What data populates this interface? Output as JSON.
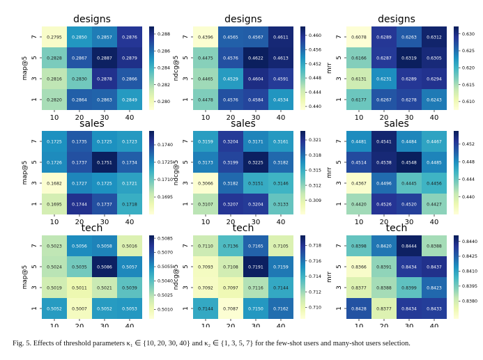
{
  "caption": "Fig. 5.  Effects of threshold parameters κ₁ ∈ {10, 20, 30, 40} and κ₂ ∈ {1, 3, 5, 7} for the few-shot users and many-shot users selection.",
  "colormap": [
    "#ffffd9",
    "#edf8b1",
    "#c7e9b4",
    "#7fcdbb",
    "#41b6c4",
    "#1d91c0",
    "#225ea8",
    "#253494",
    "#081d58"
  ],
  "chart_data": [
    {
      "type": "heatmap",
      "title": "designs",
      "ylabel": "map@5",
      "xcats": [
        "10",
        "20",
        "30",
        "40"
      ],
      "ycats": [
        "7",
        "5",
        "3",
        "1"
      ],
      "values": [
        [
          "0.2795",
          "0.2850",
          "0.2857",
          "0.2876"
        ],
        [
          "0.2828",
          "0.2867",
          "0.2887",
          "0.2879"
        ],
        [
          "0.2816",
          "0.2830",
          "0.2878",
          "0.2866"
        ],
        [
          "0.2820",
          "0.2864",
          "0.2863",
          "0.2849"
        ]
      ],
      "vmin": 0.279,
      "vmax": 0.2889,
      "cticks": [
        "0.288",
        "0.286",
        "0.284",
        "0.282",
        "0.280"
      ],
      "ctickvals": [
        0.288,
        0.286,
        0.284,
        0.282,
        0.28
      ]
    },
    {
      "type": "heatmap",
      "title": "designs",
      "ylabel": "ndcg@5",
      "xcats": [
        "10",
        "20",
        "30",
        "40"
      ],
      "ycats": [
        "7",
        "5",
        "3",
        "1"
      ],
      "values": [
        [
          "0.4396",
          "0.4565",
          "0.4567",
          "0.4611"
        ],
        [
          "0.4475",
          "0.4576",
          "0.4622",
          "0.4613"
        ],
        [
          "0.4465",
          "0.4529",
          "0.4604",
          "0.4591"
        ],
        [
          "0.4478",
          "0.4576",
          "0.4584",
          "0.4534"
        ]
      ],
      "vmin": 0.439,
      "vmax": 0.4625,
      "cticks": [
        "0.460",
        "0.456",
        "0.452",
        "0.448",
        "0.444",
        "0.440"
      ],
      "ctickvals": [
        0.46,
        0.456,
        0.452,
        0.448,
        0.444,
        0.44
      ]
    },
    {
      "type": "heatmap",
      "title": "designs",
      "ylabel": "mrr",
      "xcats": [
        "10",
        "20",
        "30",
        "40"
      ],
      "ycats": [
        "7",
        "5",
        "3",
        "1"
      ],
      "values": [
        [
          "0.6078",
          "0.6289",
          "0.6263",
          "0.6312"
        ],
        [
          "0.6166",
          "0.6287",
          "0.6319",
          "0.6305"
        ],
        [
          "0.6131",
          "0.6231",
          "0.6289",
          "0.6294"
        ],
        [
          "0.6177",
          "0.6267",
          "0.6278",
          "0.6243"
        ]
      ],
      "vmin": 0.6075,
      "vmax": 0.6322,
      "cticks": [
        "0.630",
        "0.625",
        "0.620",
        "0.615",
        "0.610"
      ],
      "ctickvals": [
        0.63,
        0.625,
        0.62,
        0.615,
        0.61
      ]
    },
    {
      "type": "heatmap",
      "title": "sales",
      "ylabel": "map@5",
      "xcats": [
        "10",
        "20",
        "30",
        "40"
      ],
      "ycats": [
        "7",
        "5",
        "3",
        "1"
      ],
      "values": [
        [
          "0.1725",
          "0.1735",
          "0.1725",
          "0.1723"
        ],
        [
          "0.1726",
          "0.1737",
          "0.1751",
          "0.1734"
        ],
        [
          "0.1682",
          "0.1727",
          "0.1725",
          "0.1721"
        ],
        [
          "0.1695",
          "0.1744",
          "0.1737",
          "0.1718"
        ]
      ],
      "vmin": 0.168,
      "vmax": 0.1752,
      "cticks": [
        "0.1740",
        "0.1725",
        "0.1710",
        "0.1695"
      ],
      "ctickvals": [
        0.174,
        0.1725,
        0.171,
        0.1695
      ]
    },
    {
      "type": "heatmap",
      "title": "sales",
      "ylabel": "ndcg@5",
      "xcats": [
        "10",
        "20",
        "30",
        "40"
      ],
      "ycats": [
        "7",
        "5",
        "3",
        "1"
      ],
      "values": [
        [
          "0.3159",
          "0.3204",
          "0.3171",
          "0.3161"
        ],
        [
          "0.3173",
          "0.3199",
          "0.3225",
          "0.3182"
        ],
        [
          "0.3066",
          "0.3182",
          "0.3151",
          "0.3146"
        ],
        [
          "0.3107",
          "0.3207",
          "0.3204",
          "0.3133"
        ]
      ],
      "vmin": 0.3062,
      "vmax": 0.3228,
      "cticks": [
        "0.321",
        "0.318",
        "0.315",
        "0.312",
        "0.309"
      ],
      "ctickvals": [
        0.321,
        0.318,
        0.315,
        0.312,
        0.309
      ]
    },
    {
      "type": "heatmap",
      "title": "sales",
      "ylabel": "mrr",
      "xcats": [
        "10",
        "20",
        "30",
        "40"
      ],
      "ycats": [
        "7",
        "5",
        "3",
        "1"
      ],
      "values": [
        [
          "0.4481",
          "0.4541",
          "0.4484",
          "0.4467"
        ],
        [
          "0.4514",
          "0.4538",
          "0.4548",
          "0.4485"
        ],
        [
          "0.4367",
          "0.4496",
          "0.4445",
          "0.4456"
        ],
        [
          "0.4420",
          "0.4526",
          "0.4520",
          "0.4427"
        ]
      ],
      "vmin": 0.436,
      "vmax": 0.455,
      "cticks": [
        "0.452",
        "0.448",
        "0.444",
        "0.440"
      ],
      "ctickvals": [
        0.452,
        0.448,
        0.444,
        0.44
      ]
    },
    {
      "type": "heatmap",
      "title": "tech",
      "ylabel": "map@5",
      "xcats": [
        "10",
        "20",
        "30",
        "40"
      ],
      "ycats": [
        "7",
        "5",
        "3",
        "1"
      ],
      "values": [
        [
          "0.5023",
          "0.5056",
          "0.5058",
          "0.5016"
        ],
        [
          "0.5024",
          "0.5035",
          "0.5086",
          "0.5057"
        ],
        [
          "0.5019",
          "0.5011",
          "0.5021",
          "0.5039"
        ],
        [
          "0.5052",
          "0.5007",
          "0.5052",
          "0.5053"
        ]
      ],
      "vmin": 0.5,
      "vmax": 0.5088,
      "cticks": [
        "0.5085",
        "0.5070",
        "0.5055",
        "0.5040",
        "0.5025",
        "0.5010"
      ],
      "ctickvals": [
        0.5085,
        0.507,
        0.5055,
        0.504,
        0.5025,
        0.501
      ]
    },
    {
      "type": "heatmap",
      "title": "tech",
      "ylabel": "ndcg@5",
      "xcats": [
        "10",
        "20",
        "30",
        "40"
      ],
      "ycats": [
        "7",
        "5",
        "3",
        "1"
      ],
      "values": [
        [
          "0.7110",
          "0.7136",
          "0.7165",
          "0.7105"
        ],
        [
          "0.7093",
          "0.7108",
          "0.7191",
          "0.7159"
        ],
        [
          "0.7092",
          "0.7097",
          "0.7116",
          "0.7144"
        ],
        [
          "0.7144",
          "0.7087",
          "0.7150",
          "0.7162"
        ]
      ],
      "vmin": 0.7085,
      "vmax": 0.7193,
      "cticks": [
        "0.718",
        "0.716",
        "0.714",
        "0.712",
        "0.710"
      ],
      "ctickvals": [
        0.718,
        0.716,
        0.714,
        0.712,
        0.71
      ]
    },
    {
      "type": "heatmap",
      "title": "tech",
      "ylabel": "mrr",
      "xcats": [
        "10",
        "20",
        "30",
        "40"
      ],
      "ycats": [
        "7",
        "5",
        "3",
        "1"
      ],
      "values": [
        [
          "0.8398",
          "0.8420",
          "0.8444",
          "0.8388"
        ],
        [
          "0.8366",
          "0.8391",
          "0.8434",
          "0.8437"
        ],
        [
          "0.8377",
          "0.8388",
          "0.8399",
          "0.8423"
        ],
        [
          "0.8428",
          "0.8377",
          "0.8434",
          "0.8433"
        ]
      ],
      "vmin": 0.8362,
      "vmax": 0.8446,
      "cticks": [
        "0.8440",
        "0.8425",
        "0.8410",
        "0.8395",
        "0.8380"
      ],
      "ctickvals": [
        0.844,
        0.8425,
        0.841,
        0.8395,
        0.838
      ]
    }
  ]
}
